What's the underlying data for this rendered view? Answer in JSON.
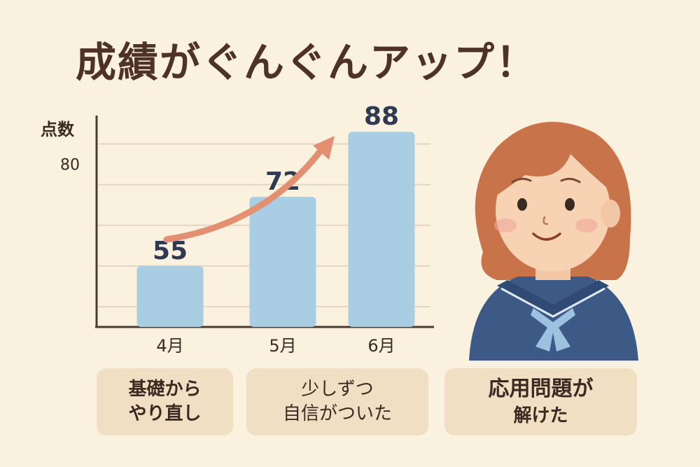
{
  "title": "成績がぐんぐんアップ！",
  "chart_data": {
    "type": "bar",
    "ylabel": "点数",
    "categories": [
      "4月",
      "5月",
      "6月"
    ],
    "values": [
      55,
      72,
      88
    ],
    "yticks": [
      80
    ],
    "ylim": [
      40,
      92
    ],
    "grid": true,
    "colors": {
      "bar": "#a9cde3",
      "axis": "#4a3a32",
      "grid": "#e4d6c2",
      "arrow": "#e39072",
      "label": "#2f3a52"
    },
    "trend_arrow": true
  },
  "notes": [
    {
      "lines": [
        "基礎から",
        "やり直し"
      ]
    },
    {
      "lines": [
        "少しずつ",
        "自信がついた"
      ]
    },
    {
      "lines": [
        "応用問題が",
        "解けた"
      ]
    }
  ],
  "illustration": {
    "icon": "student-girl-icon"
  }
}
